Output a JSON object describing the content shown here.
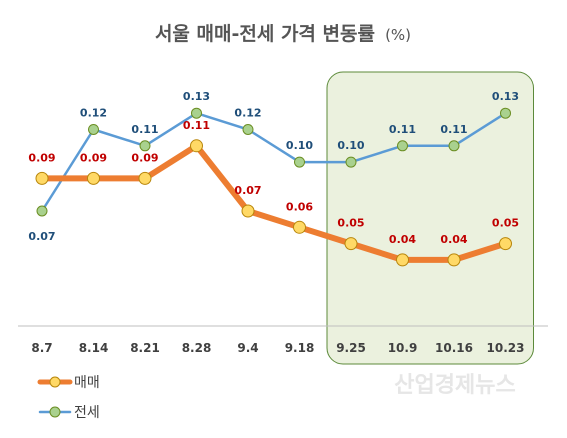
{
  "chart_data": {
    "type": "line",
    "title": "서울 매매-전세 가격 변동률",
    "title_unit": "(%)",
    "categories": [
      "8.7",
      "8.14",
      "8.21",
      "8.28",
      "9.4",
      "9.18",
      "9.25",
      "10.9",
      "10.16",
      "10.23"
    ],
    "series": [
      {
        "name": "매매",
        "values": [
          0.09,
          0.09,
          0.09,
          0.11,
          0.07,
          0.06,
          0.05,
          0.04,
          0.04,
          0.05
        ],
        "labels": [
          "0.09",
          "0.09",
          "0.09",
          "0.11",
          "0.07",
          "0.06",
          "0.05",
          "0.04",
          "0.04",
          "0.05"
        ],
        "line_color": "#ed7d31",
        "marker_color": "#ffd966",
        "label_color": "#c00000"
      },
      {
        "name": "전세",
        "values": [
          0.07,
          0.12,
          0.11,
          0.13,
          0.12,
          0.1,
          0.1,
          0.11,
          0.11,
          0.13
        ],
        "labels": [
          "0.07",
          "0.12",
          "0.11",
          "0.13",
          "0.12",
          "0.10",
          "0.10",
          "0.11",
          "0.11",
          "0.13"
        ],
        "line_color": "#5b9bd5",
        "marker_color": "#a9d18e",
        "label_color": "#1f4e79"
      }
    ],
    "ylim": [
      0.0,
      0.14
    ],
    "grid": false,
    "legend_position": "bottom-left",
    "highlight": {
      "from_category": "9.25",
      "to_category": "10.23",
      "fill_color": "#ebf1de",
      "border_color": "#5c8a3a"
    },
    "watermark": "산업경제뉴스"
  }
}
